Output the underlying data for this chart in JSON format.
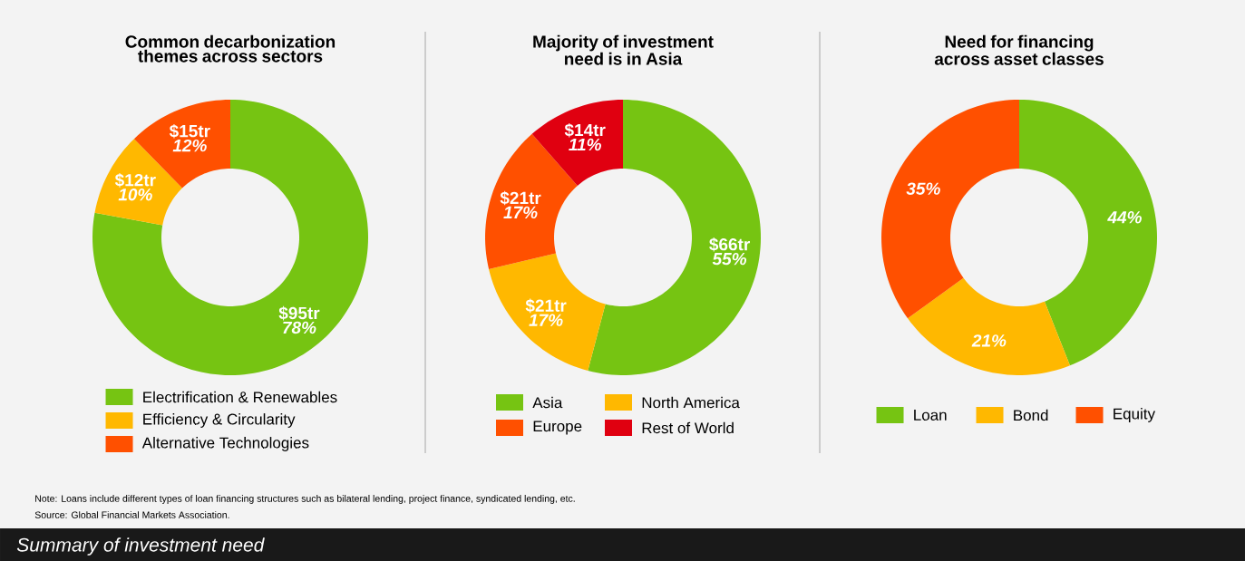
{
  "chart_data": [
    {
      "type": "donut",
      "title": "Common decarbonization themes across sectors",
      "categories": [
        "Electrification & Renewables",
        "Efficiency & Circularity",
        "Alternative Technologies"
      ],
      "values": [
        95,
        12,
        15
      ],
      "value_labels": [
        "$95tr *78%*",
        "$12tr *10%*",
        "$15tr *12%*"
      ],
      "colors": [
        "#76c412",
        "#ffb800",
        "#ff5000"
      ],
      "legend": "bottom",
      "annotations": [
        "Note: Loans include different types of loan financing structures such as bilateral lending, project finance, syndicated lending, etc.",
        "Source: Global Financial Markets Association.",
        "Summary of investment need"
      ]
    },
    {
      "type": "donut",
      "title": "Majority of investment need is in Asia",
      "categories": [
        "Asia",
        "North America",
        "Europe",
        "Rest of World"
      ],
      "values": [
        66,
        21,
        21,
        14
      ],
      "value_labels": [
        "$66tr *55%*",
        "$21tr *17%*",
        "$21tr *17%*",
        "$14tr *11%*"
      ],
      "colors": [
        "#76c412",
        "#ffb800",
        "#ff5000",
        "#e00010"
      ],
      "legend": "bottom"
    },
    {
      "type": "donut",
      "title": "Need for financing across asset classes",
      "categories": [
        "Loan",
        "Bond",
        "Equity"
      ],
      "values": [
        44,
        21,
        35
      ],
      "value_labels": [
        "44%",
        "21%",
        "35%"
      ],
      "colors": [
        "#76c412",
        "#ffb800",
        "#ff5000"
      ],
      "legend": "bottom"
    }
  ]
}
